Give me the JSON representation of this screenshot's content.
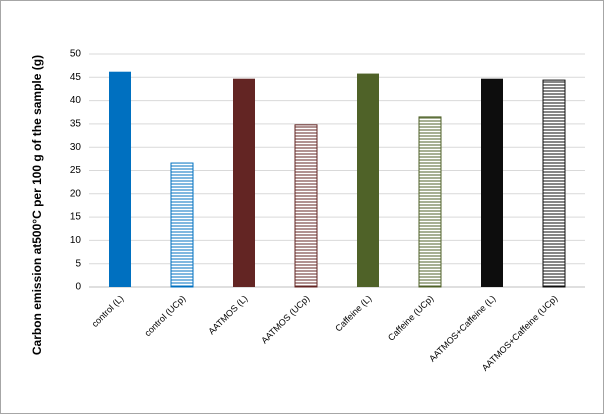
{
  "chart_data": {
    "type": "bar",
    "y_label": "Carbon emission at500°C  per 100 g of the sample (g)",
    "categories": [
      "control (L)",
      "control (UCp)",
      "AATMOS (L)",
      "AATMOS (UCp)",
      "Caffeine (L)",
      "Caffeine (UCp)",
      "AATMOS+Caffeine (L)",
      "AATMOS+Caffeine (UCp)"
    ],
    "values": [
      46.2,
      26.6,
      44.7,
      34.8,
      45.8,
      36.5,
      44.7,
      44.4
    ],
    "colors": [
      "#0070c0",
      "#0070c0",
      "#632523",
      "#632523",
      "#4f6228",
      "#4f6228",
      "#0d0d0d",
      "#0d0d0d"
    ],
    "hatched": [
      false,
      true,
      false,
      true,
      false,
      true,
      false,
      true
    ],
    "ylim": [
      0,
      50
    ],
    "yticks": [
      0,
      5,
      10,
      15,
      20,
      25,
      30,
      35,
      40,
      45,
      50
    ],
    "grid": true
  }
}
